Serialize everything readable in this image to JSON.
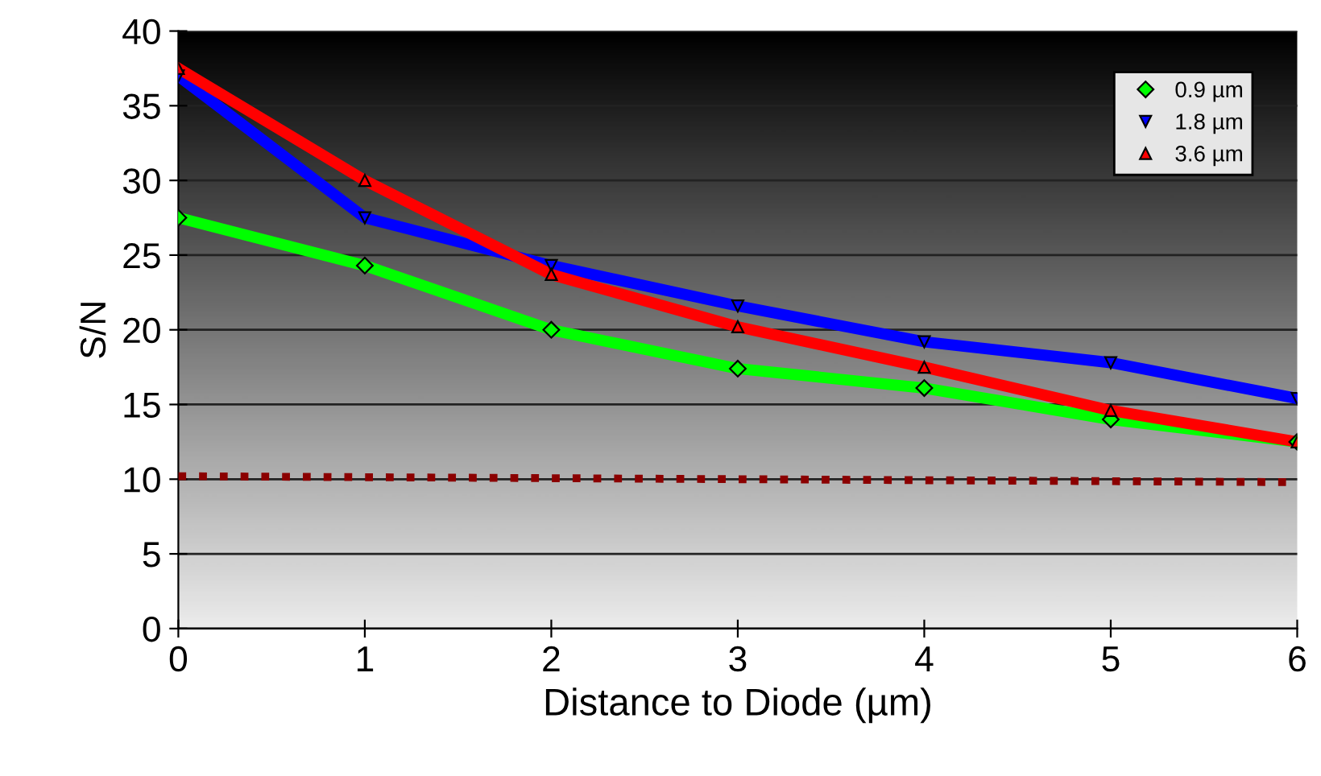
{
  "chart_data": {
    "type": "line",
    "xlabel": "Distance to Diode (µm)",
    "ylabel": "S/N",
    "x": [
      0,
      1,
      2,
      3,
      4,
      5,
      6
    ],
    "series": [
      {
        "name": "0.9 µm",
        "color": "#00ff00",
        "marker": "diamond",
        "values": [
          27.5,
          24.3,
          20.0,
          17.4,
          16.1,
          14.0,
          12.5
        ]
      },
      {
        "name": "1.8 µm",
        "color": "#0000ff",
        "marker": "triangle_down",
        "values": [
          37.0,
          27.5,
          24.3,
          21.6,
          19.2,
          17.8,
          15.4
        ]
      },
      {
        "name": "3.6 µm",
        "color": "#ff0000",
        "marker": "triangle",
        "values": [
          37.5,
          30.0,
          23.7,
          20.2,
          17.5,
          14.6,
          12.5
        ]
      },
      {
        "color": "#8b0000",
        "marker": "none",
        "line_style": "dotted",
        "x": [
          0,
          6
        ],
        "values": [
          10.2,
          9.8
        ]
      }
    ],
    "xlim": [
      0,
      6
    ],
    "xticks": [
      0,
      1,
      2,
      3,
      4,
      5,
      6
    ],
    "ylim": [
      0,
      40
    ],
    "yticks": [
      0,
      5,
      10,
      15,
      20,
      25,
      30,
      35,
      40
    ],
    "grid": "y",
    "legend": "top right"
  }
}
